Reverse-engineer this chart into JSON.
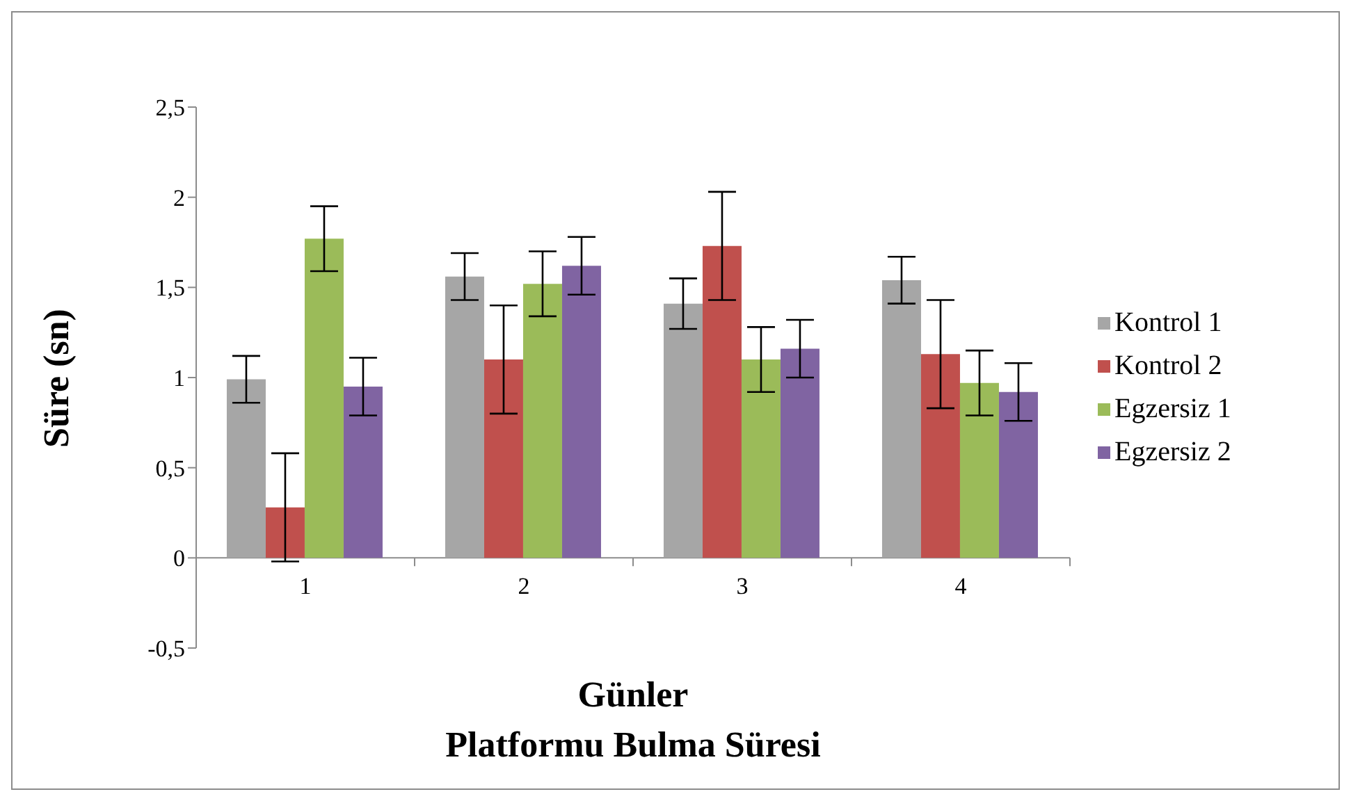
{
  "chart_data": {
    "type": "bar",
    "title": "Platformu Bulma Süresi",
    "xlabel": "Günler",
    "ylabel": "Süre (sn)",
    "categories": [
      "1",
      "2",
      "3",
      "4"
    ],
    "series": [
      {
        "name": "Kontrol 1",
        "color": "#a6a6a6",
        "values": [
          0.99,
          1.56,
          1.41,
          1.54
        ],
        "errors": [
          0.13,
          0.13,
          0.14,
          0.13
        ]
      },
      {
        "name": "Kontrol 2",
        "color": "#c0504d",
        "values": [
          0.28,
          1.1,
          1.73,
          1.13
        ],
        "errors": [
          0.3,
          0.3,
          0.3,
          0.3
        ]
      },
      {
        "name": "Egzersiz 1",
        "color": "#9bbb59",
        "values": [
          1.77,
          1.52,
          1.1,
          0.97
        ],
        "errors": [
          0.18,
          0.18,
          0.18,
          0.18
        ]
      },
      {
        "name": "Egzersiz 2",
        "color": "#8064a2",
        "values": [
          0.95,
          1.62,
          1.16,
          0.92
        ],
        "errors": [
          0.16,
          0.16,
          0.16,
          0.16
        ]
      }
    ],
    "ylim": [
      -0.5,
      2.5
    ],
    "yticks": [
      {
        "value": -0.5,
        "label": "-0,5"
      },
      0,
      {
        "value": 0.5,
        "label": "0,5"
      },
      1,
      {
        "value": 1.5,
        "label": "1,5"
      },
      2,
      {
        "value": 2.5,
        "label": "2,5"
      }
    ],
    "grid": false,
    "legend": "right"
  }
}
